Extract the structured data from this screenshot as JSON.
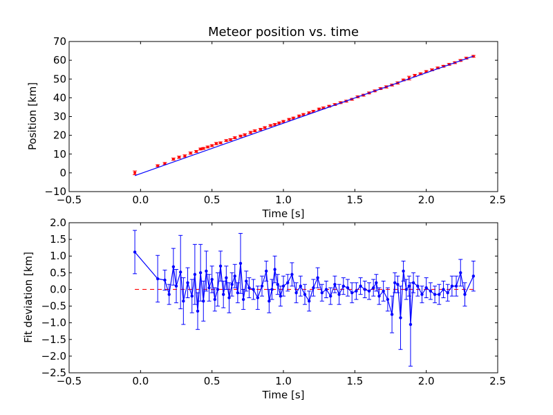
{
  "chart_data": [
    {
      "type": "scatter",
      "title": "Meteor position vs. time",
      "xlabel": "Time [s]",
      "ylabel": "Position [km]",
      "xlim": [
        -0.5,
        2.5
      ],
      "ylim": [
        -10,
        70
      ],
      "xticks": [
        "−0.5",
        "0.0",
        "0.5",
        "1.0",
        "1.5",
        "2.0",
        "2.5"
      ],
      "yticks": [
        "−10",
        "0",
        "10",
        "20",
        "30",
        "40",
        "50",
        "60",
        "70"
      ],
      "xtick_values": [
        -0.5,
        0,
        0.5,
        1.0,
        1.5,
        2.0,
        2.5
      ],
      "ytick_values": [
        -10,
        0,
        10,
        20,
        30,
        40,
        50,
        60,
        70
      ],
      "series": [
        {
          "style": "error-bars",
          "color": "#ff0000",
          "x": [
            -0.04,
            0.12,
            0.17,
            0.23,
            0.27,
            0.31,
            0.35,
            0.39,
            0.42,
            0.44,
            0.47,
            0.5,
            0.53,
            0.56,
            0.6,
            0.63,
            0.66,
            0.7,
            0.73,
            0.77,
            0.8,
            0.84,
            0.87,
            0.91,
            0.94,
            0.97,
            1.0,
            1.04,
            1.07,
            1.11,
            1.14,
            1.18,
            1.21,
            1.25,
            1.28,
            1.32,
            1.36,
            1.4,
            1.44,
            1.48,
            1.52,
            1.56,
            1.6,
            1.64,
            1.68,
            1.72,
            1.76,
            1.8,
            1.84,
            1.88,
            1.92,
            1.96,
            2.0,
            2.04,
            2.08,
            2.12,
            2.16,
            2.2,
            2.24,
            2.28,
            2.33
          ],
          "y": [
            0.0,
            3.8,
            5.0,
            7.3,
            8.3,
            9.0,
            10.5,
            11.4,
            12.7,
            13.0,
            13.8,
            14.5,
            15.6,
            16.0,
            17.2,
            17.7,
            18.7,
            19.6,
            20.3,
            21.5,
            22.4,
            23.2,
            24.1,
            25.2,
            25.8,
            26.6,
            27.4,
            28.5,
            29.2,
            30.3,
            31.1,
            32.0,
            32.8,
            34.0,
            34.6,
            35.5,
            36.4,
            37.4,
            38.2,
            39.2,
            40.5,
            41.4,
            42.6,
            43.7,
            44.9,
            45.8,
            46.8,
            47.9,
            49.5,
            50.5,
            51.9,
            52.8,
            54.0,
            54.9,
            55.9,
            56.8,
            57.8,
            58.7,
            59.9,
            61.1,
            62.1
          ],
          "yerr": [
            1.0,
            0.5,
            0.5,
            0.6,
            0.6,
            0.6,
            0.6,
            0.5,
            0.5,
            0.5,
            0.5,
            0.5,
            0.6,
            0.5,
            0.5,
            0.5,
            0.5,
            0.5,
            0.5,
            0.6,
            0.5,
            0.5,
            0.5,
            0.5,
            0.5,
            0.5,
            0.5,
            0.5,
            0.5,
            0.5,
            0.5,
            0.5,
            0.5,
            0.5,
            0.5,
            0.5,
            0.5,
            0.5,
            0.5,
            0.5,
            0.5,
            0.5,
            0.5,
            0.5,
            0.5,
            0.6,
            0.5,
            0.6,
            0.5,
            1.0,
            0.6,
            0.5,
            0.5,
            0.5,
            0.5,
            0.5,
            0.5,
            0.5,
            0.5,
            0.5,
            0.5
          ]
        },
        {
          "style": "line",
          "color": "#0000ff",
          "x": [
            -0.04,
            2.33
          ],
          "y": [
            -1.5,
            62.2
          ]
        }
      ]
    },
    {
      "type": "line",
      "xlabel": "Time [s]",
      "ylabel": "Fit deviation [km]",
      "xlim": [
        -0.5,
        2.5
      ],
      "ylim": [
        -2.5,
        2.0
      ],
      "xticks": [
        "−0.5",
        "0.0",
        "0.5",
        "1.0",
        "1.5",
        "2.0",
        "2.5"
      ],
      "yticks": [
        "−2.5",
        "−2.0",
        "−1.5",
        "−1.0",
        "−0.5",
        "0.0",
        "0.5",
        "1.0",
        "1.5",
        "2.0"
      ],
      "xtick_values": [
        -0.5,
        0,
        0.5,
        1.0,
        1.5,
        2.0,
        2.5
      ],
      "ytick_values": [
        -2.5,
        -2.0,
        -1.5,
        -1.0,
        -0.5,
        0.0,
        0.5,
        1.0,
        1.5,
        2.0
      ],
      "series": [
        {
          "style": "line-errorbars",
          "color": "#0000ff",
          "x": [
            -0.04,
            0.12,
            0.17,
            0.2,
            0.23,
            0.25,
            0.28,
            0.3,
            0.33,
            0.36,
            0.38,
            0.4,
            0.42,
            0.44,
            0.46,
            0.48,
            0.5,
            0.52,
            0.54,
            0.56,
            0.58,
            0.6,
            0.62,
            0.64,
            0.66,
            0.68,
            0.7,
            0.72,
            0.74,
            0.76,
            0.79,
            0.82,
            0.85,
            0.88,
            0.9,
            0.92,
            0.94,
            0.96,
            0.98,
            1.0,
            1.03,
            1.06,
            1.09,
            1.12,
            1.15,
            1.18,
            1.21,
            1.24,
            1.27,
            1.3,
            1.33,
            1.36,
            1.39,
            1.42,
            1.45,
            1.48,
            1.51,
            1.54,
            1.57,
            1.6,
            1.63,
            1.65,
            1.67,
            1.7,
            1.73,
            1.76,
            1.78,
            1.8,
            1.82,
            1.84,
            1.86,
            1.88,
            1.89,
            1.91,
            1.94,
            1.97,
            2.0,
            2.03,
            2.06,
            2.09,
            2.12,
            2.15,
            2.18,
            2.21,
            2.24,
            2.27,
            2.33
          ],
          "y": [
            1.12,
            0.32,
            0.28,
            -0.15,
            0.68,
            0.1,
            0.52,
            -0.35,
            0.2,
            -0.2,
            0.45,
            -0.65,
            0.5,
            -0.35,
            0.55,
            0.05,
            0.3,
            -0.3,
            0.0,
            0.7,
            -0.15,
            0.35,
            -0.25,
            0.15,
            0.4,
            -0.1,
            0.78,
            -0.3,
            0.25,
            0.05,
            0.0,
            -0.25,
            0.1,
            0.55,
            -0.35,
            0.0,
            0.6,
            0.15,
            -0.2,
            0.1,
            0.2,
            0.45,
            -0.1,
            0.1,
            -0.15,
            -0.35,
            0.05,
            0.35,
            -0.1,
            0.0,
            -0.2,
            0.15,
            -0.15,
            0.1,
            0.05,
            -0.1,
            -0.05,
            0.1,
            0.0,
            -0.05,
            0.05,
            0.2,
            -0.2,
            -0.05,
            -0.3,
            -0.75,
            0.2,
            0.15,
            -0.85,
            0.55,
            0.0,
            0.1,
            -1.05,
            0.2,
            0.1,
            -0.15,
            0.05,
            -0.05,
            -0.15,
            -0.15,
            0.0,
            -0.1,
            0.1,
            0.1,
            0.5,
            -0.15,
            0.4
          ],
          "yerr": [
            0.65,
            0.7,
            0.3,
            0.3,
            0.55,
            0.5,
            1.1,
            0.7,
            0.45,
            0.5,
            0.9,
            0.55,
            0.85,
            0.6,
            0.6,
            0.4,
            0.4,
            0.35,
            0.5,
            0.45,
            0.4,
            0.35,
            0.45,
            0.35,
            0.35,
            0.3,
            0.9,
            0.3,
            0.3,
            0.3,
            0.3,
            0.35,
            0.3,
            0.3,
            0.35,
            0.3,
            0.4,
            0.3,
            0.3,
            0.3,
            0.25,
            0.35,
            0.3,
            0.3,
            0.3,
            0.3,
            0.25,
            0.3,
            0.25,
            0.25,
            0.25,
            0.25,
            0.3,
            0.25,
            0.25,
            0.3,
            0.25,
            0.25,
            0.25,
            0.25,
            0.25,
            0.25,
            0.25,
            0.3,
            0.35,
            0.55,
            0.3,
            0.25,
            0.95,
            0.3,
            0.3,
            0.3,
            1.25,
            0.3,
            0.3,
            0.25,
            0.3,
            0.25,
            0.25,
            0.3,
            0.25,
            0.25,
            0.3,
            0.3,
            0.4,
            0.35,
            0.45
          ]
        },
        {
          "style": "dashed-line",
          "color": "#ff0000",
          "x": [
            -0.04,
            2.33
          ],
          "y": [
            0,
            0
          ]
        }
      ]
    }
  ]
}
